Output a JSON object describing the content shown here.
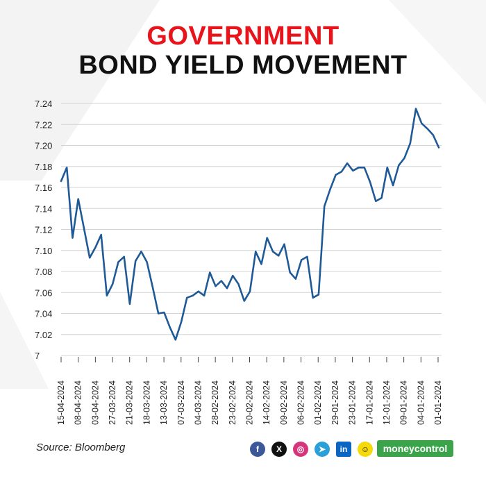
{
  "header": {
    "title_line1": "GOVERNMENT",
    "title_line2": "BOND YIELD MOVEMENT"
  },
  "colors": {
    "title_accent": "#e8141b",
    "line": "#1f5a96",
    "grid": "#d4d4d4",
    "brand_green": "#3ba44a"
  },
  "chart_data": {
    "type": "line",
    "title": "GOVERNMENT BOND YIELD MOVEMENT",
    "xlabel": "",
    "ylabel": "",
    "ylim": [
      7.0,
      7.24
    ],
    "y_ticks": [
      "7.24",
      "7.22",
      "7.20",
      "7.18",
      "7.16",
      "7.14",
      "7.12",
      "7.10",
      "7.08",
      "7.06",
      "7.04",
      "7.02",
      "7"
    ],
    "x_order": "reverse-chronological (newest at left)",
    "x_tick_labels": [
      "15-04-2024",
      "08-04-2024",
      "03-04-2024",
      "27-03-2024",
      "21-03-2024",
      "18-03-2024",
      "13-03-2024",
      "07-03-2024",
      "04-03-2024",
      "28-02-2024",
      "23-02-2024",
      "20-02-2024",
      "14-02-2024",
      "09-02-2024",
      "06-02-2024",
      "01-02-2024",
      "29-01-2024",
      "23-01-2024",
      "17-01-2024",
      "12-01-2024",
      "09-01-2024",
      "04-01-2024",
      "01-01-2024"
    ],
    "grid": true,
    "legend": "none",
    "series": [
      {
        "values": [
          7.166,
          7.179,
          7.112,
          7.149,
          7.121,
          7.093,
          7.103,
          7.115,
          7.057,
          7.068,
          7.089,
          7.094,
          7.049,
          7.09,
          7.099,
          7.089,
          7.065,
          7.04,
          7.041,
          7.027,
          7.015,
          7.032,
          7.055,
          7.057,
          7.061,
          7.057,
          7.079,
          7.066,
          7.071,
          7.064,
          7.076,
          7.068,
          7.052,
          7.061,
          7.099,
          7.087,
          7.112,
          7.099,
          7.095,
          7.106,
          7.079,
          7.073,
          7.091,
          7.094,
          7.055,
          7.058,
          7.142,
          7.158,
          7.172,
          7.175,
          7.183,
          7.176,
          7.179,
          7.179,
          7.165,
          7.147,
          7.15,
          7.179,
          7.162,
          7.181,
          7.188,
          7.202,
          7.235,
          7.221,
          7.216,
          7.21,
          7.198
        ]
      }
    ]
  },
  "footer": {
    "source": "Source: Bloomberg",
    "social_icons": [
      "facebook-icon",
      "x-icon",
      "instagram-icon",
      "telegram-icon",
      "linkedin-icon",
      "snapchat-icon"
    ],
    "brand": "moneycontrol"
  }
}
